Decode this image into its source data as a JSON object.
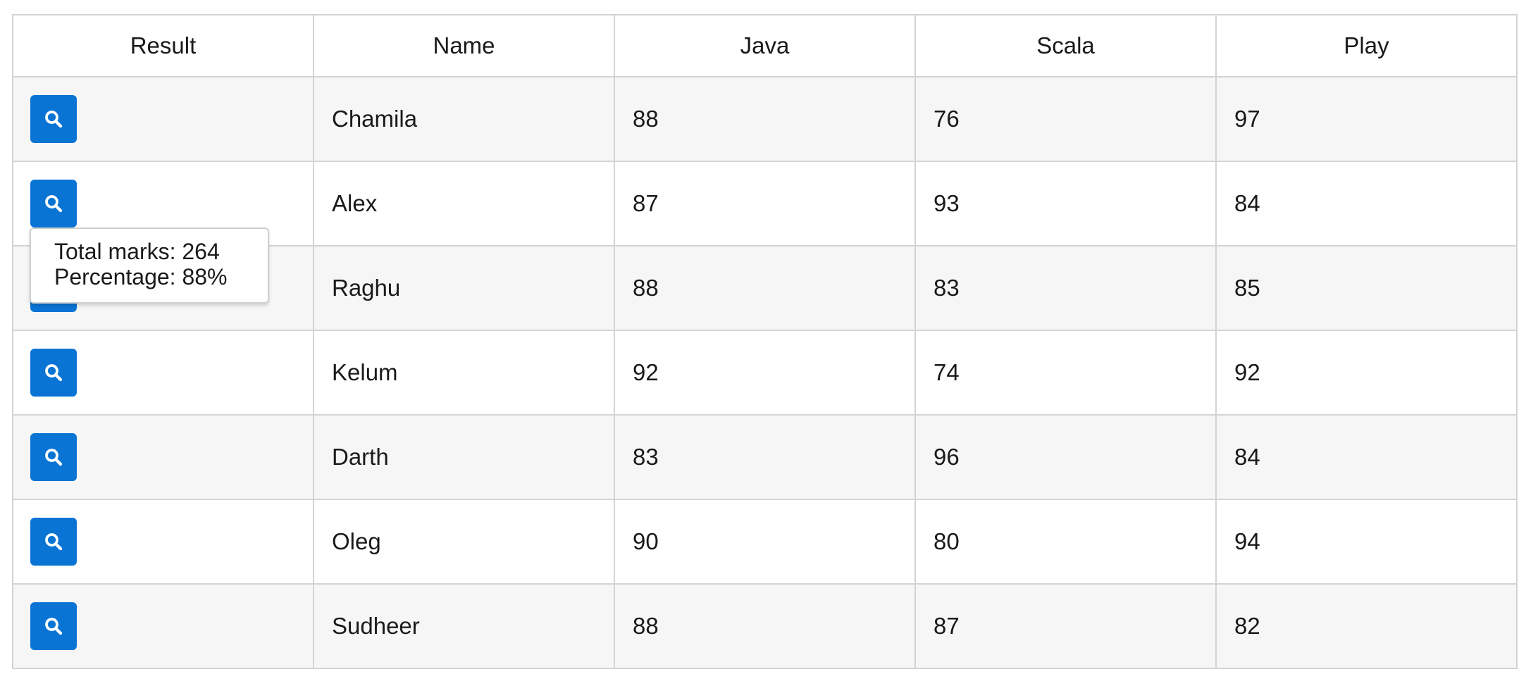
{
  "table": {
    "columns": [
      "Result",
      "Name",
      "Java",
      "Scala",
      "Play"
    ],
    "rows": [
      {
        "name": "Chamila",
        "java": "88",
        "scala": "76",
        "play": "97"
      },
      {
        "name": "Alex",
        "java": "87",
        "scala": "93",
        "play": "84"
      },
      {
        "name": "Raghu",
        "java": "88",
        "scala": "83",
        "play": "85"
      },
      {
        "name": "Kelum",
        "java": "92",
        "scala": "74",
        "play": "92"
      },
      {
        "name": "Darth",
        "java": "83",
        "scala": "96",
        "play": "84"
      },
      {
        "name": "Oleg",
        "java": "90",
        "scala": "80",
        "play": "94"
      },
      {
        "name": "Sudheer",
        "java": "88",
        "scala": "87",
        "play": "82"
      }
    ]
  },
  "tooltip": {
    "total": "Total marks: 264",
    "percentage": "Percentage: 88%"
  },
  "colors": {
    "button": "#0a74d4",
    "stripe": "#f6f6f6",
    "border": "#d4d4d4"
  },
  "icons": {
    "result_button": "search-icon"
  }
}
